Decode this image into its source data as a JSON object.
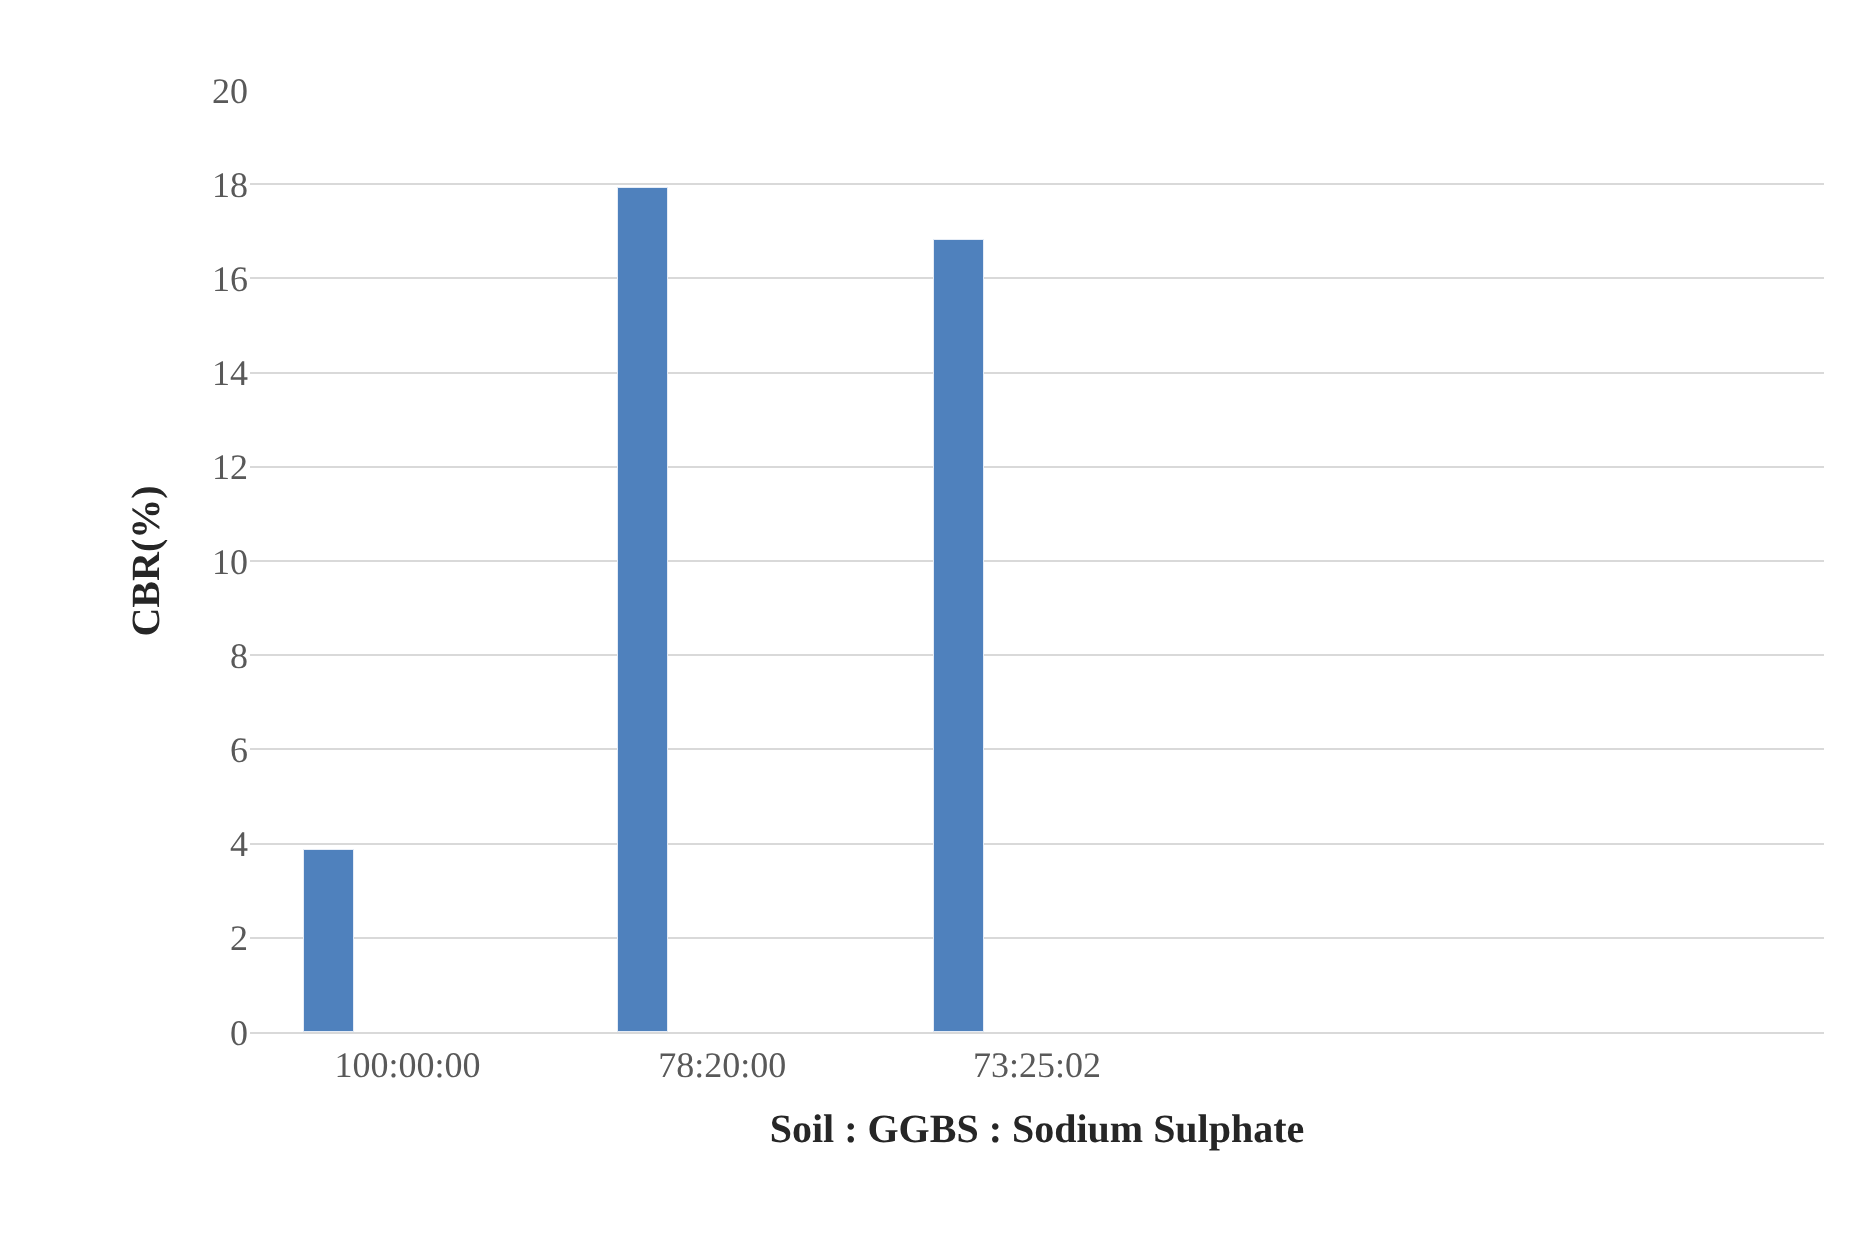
{
  "chart_data": {
    "type": "bar",
    "xlabel": "Soil : GGBS : Sodium Sulphate",
    "ylabel": "CBR(%)",
    "categories": [
      "100:00:00",
      "78:20:00",
      "73:25:02",
      null,
      null
    ],
    "series": [
      {
        "color": "#4f81bd",
        "values": [
          3.85,
          17.9,
          16.8,
          null,
          null
        ]
      }
    ],
    "ylim": [
      0,
      20
    ],
    "yticks": [
      0,
      2,
      4,
      6,
      8,
      10,
      12,
      14,
      16,
      18,
      20
    ],
    "grid": "y"
  }
}
